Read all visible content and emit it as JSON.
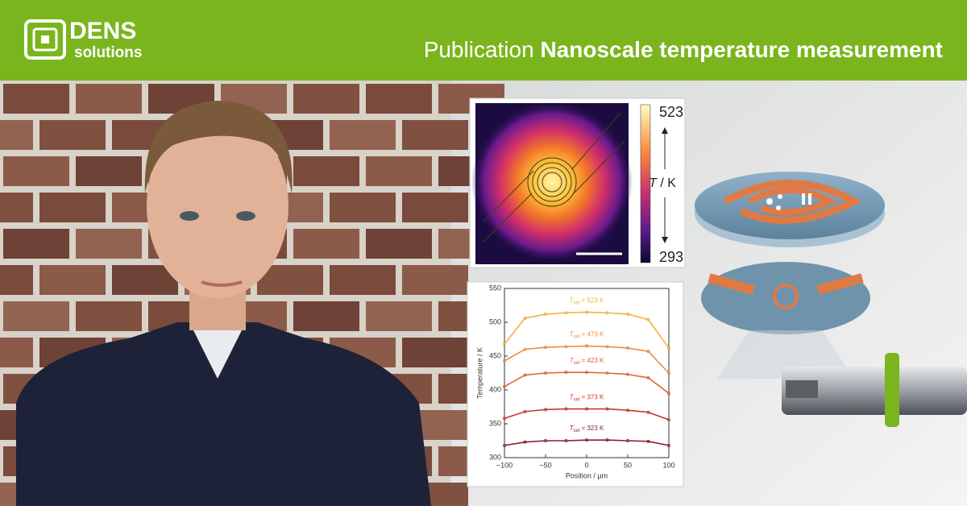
{
  "header": {
    "logo_top": "DENS",
    "logo_bottom": "solutions",
    "title_prefix": "Publication",
    "title_bold": "Nanoscale temperature measurement"
  },
  "heatmap": {
    "colorbar_max": 523,
    "colorbar_min": 293,
    "colorbar_label_symbol": "T",
    "colorbar_label_unit": "/ K"
  },
  "chart_data": {
    "type": "line",
    "xlabel": "Position / µm",
    "ylabel": "Temperature / K",
    "series_label_symbol": "T",
    "series_label_subscript": "set",
    "x": [
      -100,
      -75,
      -50,
      -25,
      0,
      25,
      50,
      75,
      100
    ],
    "series": [
      {
        "name": "= 523 K",
        "color": "#f2b13a",
        "values": [
          468,
          506,
          512,
          514,
          515,
          514,
          512,
          504,
          462
        ]
      },
      {
        "name": "= 473 K",
        "color": "#f08a3a",
        "values": [
          443,
          460,
          463,
          464,
          465,
          464,
          462,
          457,
          425
        ]
      },
      {
        "name": "= 423 K",
        "color": "#e0643a",
        "values": [
          405,
          422,
          425,
          426,
          426,
          425,
          423,
          418,
          395
        ]
      },
      {
        "name": "= 373 K",
        "color": "#c43a30",
        "values": [
          358,
          368,
          371,
          372,
          372,
          372,
          370,
          367,
          356
        ]
      },
      {
        "name": "= 323 K",
        "color": "#8a1f2a",
        "values": [
          318,
          323,
          325,
          325,
          326,
          326,
          325,
          324,
          318
        ]
      }
    ],
    "xlim": [
      -100,
      100
    ],
    "xticks": [
      {
        "value": -100,
        "label": "−100"
      },
      {
        "value": -50,
        "label": "−50"
      },
      0,
      50,
      100
    ],
    "ylim": [
      300,
      550
    ],
    "yticks": [
      300,
      350,
      400,
      450,
      500,
      550
    ]
  }
}
